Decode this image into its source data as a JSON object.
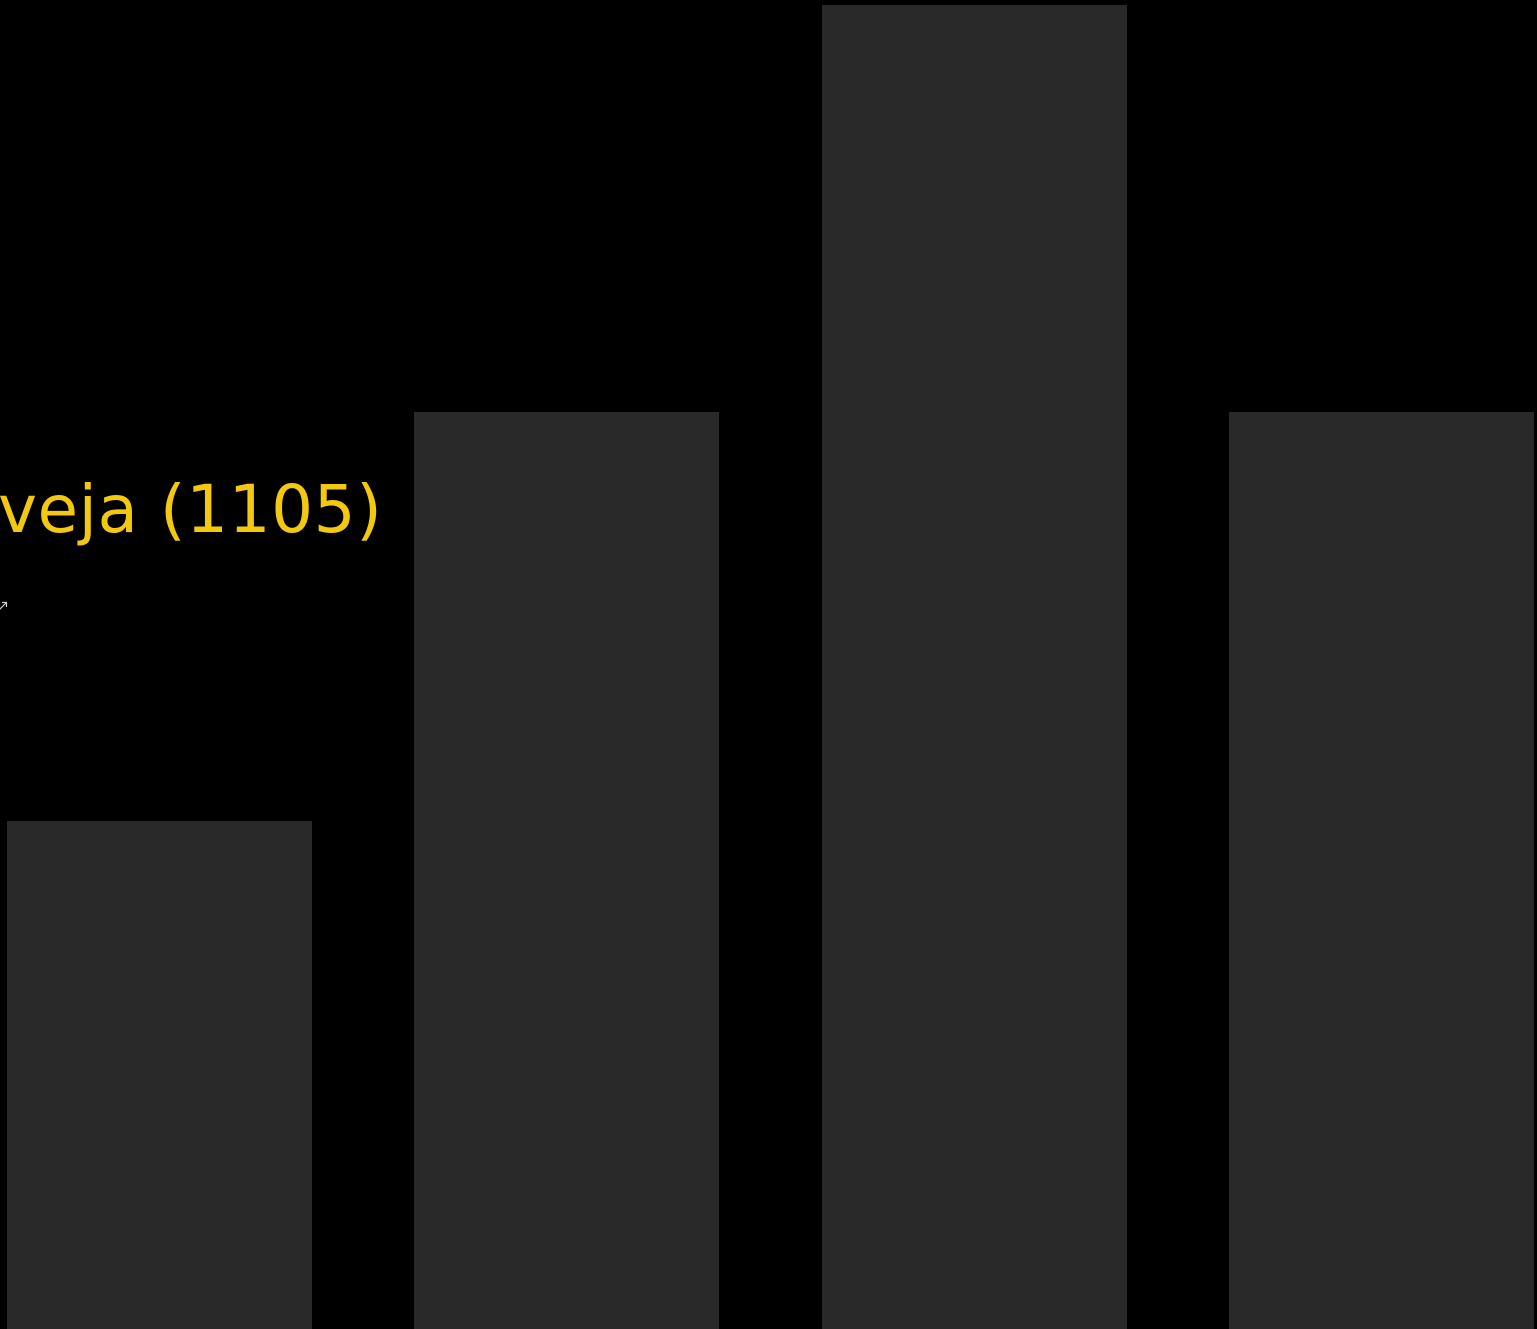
{
  "colors": {
    "background": "#000000",
    "bar": "#292929",
    "title": "#F2C811",
    "icon": "#cfcfcf"
  },
  "title": {
    "text": "veja (1105)"
  },
  "icons": {
    "link": "external-link-icon"
  },
  "bars": {
    "count": 4
  }
}
